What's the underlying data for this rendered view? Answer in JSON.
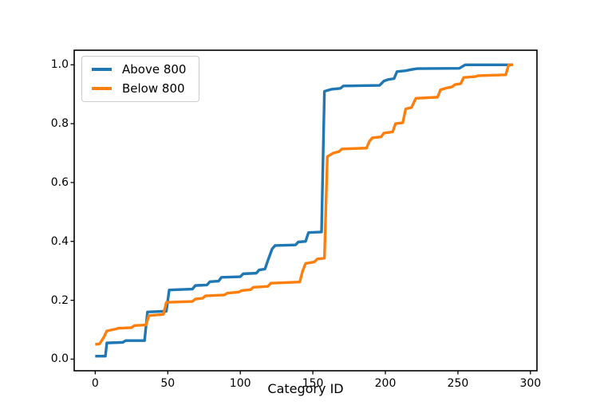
{
  "figure": {
    "background": "#ffffff",
    "text_color": "#000000",
    "spine_color": "#000000"
  },
  "chart_data": {
    "type": "line",
    "title": "",
    "xlabel": "Category ID",
    "ylabel": "",
    "xlim": [
      -14.5,
      304.5
    ],
    "ylim": [
      -0.0395,
      1.0495
    ],
    "grid": false,
    "legend_position": "upper left",
    "line_style": "step",
    "xticks": [
      {
        "value": 0,
        "label": "0"
      },
      {
        "value": 50,
        "label": "50"
      },
      {
        "value": 100,
        "label": "100"
      },
      {
        "value": 150,
        "label": "150"
      },
      {
        "value": 200,
        "label": "200"
      },
      {
        "value": 250,
        "label": "250"
      },
      {
        "value": 300,
        "label": "300"
      }
    ],
    "yticks": [
      {
        "value": 0.0,
        "label": "0.0"
      },
      {
        "value": 0.2,
        "label": "0.2"
      },
      {
        "value": 0.4,
        "label": "0.4"
      },
      {
        "value": 0.6,
        "label": "0.6"
      },
      {
        "value": 0.8,
        "label": "0.8"
      },
      {
        "value": 1.0,
        "label": "1.0"
      }
    ],
    "series": [
      {
        "name": "Above 800",
        "color": "#1f77b4",
        "points": [
          [
            0,
            0.01
          ],
          [
            7,
            0.01
          ],
          [
            8,
            0.055
          ],
          [
            19,
            0.057
          ],
          [
            21,
            0.063
          ],
          [
            34,
            0.063
          ],
          [
            36,
            0.16
          ],
          [
            49,
            0.163
          ],
          [
            51,
            0.235
          ],
          [
            67,
            0.238
          ],
          [
            69,
            0.25
          ],
          [
            77,
            0.252
          ],
          [
            79,
            0.263
          ],
          [
            85,
            0.265
          ],
          [
            87,
            0.278
          ],
          [
            100,
            0.28
          ],
          [
            102,
            0.29
          ],
          [
            111,
            0.292
          ],
          [
            113,
            0.303
          ],
          [
            117,
            0.306
          ],
          [
            119,
            0.335
          ],
          [
            122,
            0.375
          ],
          [
            124,
            0.386
          ],
          [
            138,
            0.388
          ],
          [
            140,
            0.398
          ],
          [
            145,
            0.4
          ],
          [
            147,
            0.43
          ],
          [
            156,
            0.432
          ],
          [
            158,
            0.91
          ],
          [
            163,
            0.917
          ],
          [
            169,
            0.92
          ],
          [
            171,
            0.928
          ],
          [
            196,
            0.93
          ],
          [
            199,
            0.945
          ],
          [
            202,
            0.95
          ],
          [
            206,
            0.953
          ],
          [
            208,
            0.977
          ],
          [
            214,
            0.98
          ],
          [
            218,
            0.984
          ],
          [
            222,
            0.987
          ],
          [
            251,
            0.988
          ],
          [
            255,
            1.0
          ],
          [
            288,
            1.0
          ]
        ]
      },
      {
        "name": "Below 800",
        "color": "#ff7f0e",
        "points": [
          [
            0,
            0.05
          ],
          [
            3,
            0.052
          ],
          [
            6,
            0.075
          ],
          [
            8,
            0.096
          ],
          [
            14,
            0.102
          ],
          [
            16,
            0.105
          ],
          [
            25,
            0.107
          ],
          [
            27,
            0.114
          ],
          [
            35,
            0.116
          ],
          [
            37,
            0.148
          ],
          [
            47,
            0.152
          ],
          [
            49,
            0.193
          ],
          [
            67,
            0.196
          ],
          [
            69,
            0.204
          ],
          [
            74,
            0.207
          ],
          [
            76,
            0.215
          ],
          [
            89,
            0.218
          ],
          [
            91,
            0.224
          ],
          [
            99,
            0.228
          ],
          [
            101,
            0.233
          ],
          [
            107,
            0.236
          ],
          [
            109,
            0.244
          ],
          [
            119,
            0.247
          ],
          [
            121,
            0.258
          ],
          [
            141,
            0.262
          ],
          [
            143,
            0.3
          ],
          [
            145,
            0.325
          ],
          [
            151,
            0.33
          ],
          [
            153,
            0.34
          ],
          [
            158,
            0.343
          ],
          [
            160,
            0.688
          ],
          [
            164,
            0.7
          ],
          [
            168,
            0.705
          ],
          [
            170,
            0.714
          ],
          [
            187,
            0.717
          ],
          [
            189,
            0.74
          ],
          [
            191,
            0.752
          ],
          [
            197,
            0.755
          ],
          [
            199,
            0.768
          ],
          [
            205,
            0.772
          ],
          [
            207,
            0.8
          ],
          [
            212,
            0.803
          ],
          [
            214,
            0.85
          ],
          [
            218,
            0.855
          ],
          [
            221,
            0.886
          ],
          [
            236,
            0.89
          ],
          [
            238,
            0.915
          ],
          [
            242,
            0.921
          ],
          [
            246,
            0.925
          ],
          [
            248,
            0.933
          ],
          [
            252,
            0.936
          ],
          [
            254,
            0.957
          ],
          [
            262,
            0.96
          ],
          [
            264,
            0.963
          ],
          [
            283,
            0.966
          ],
          [
            285,
            1.0
          ],
          [
            288,
            1.0
          ]
        ]
      }
    ]
  }
}
